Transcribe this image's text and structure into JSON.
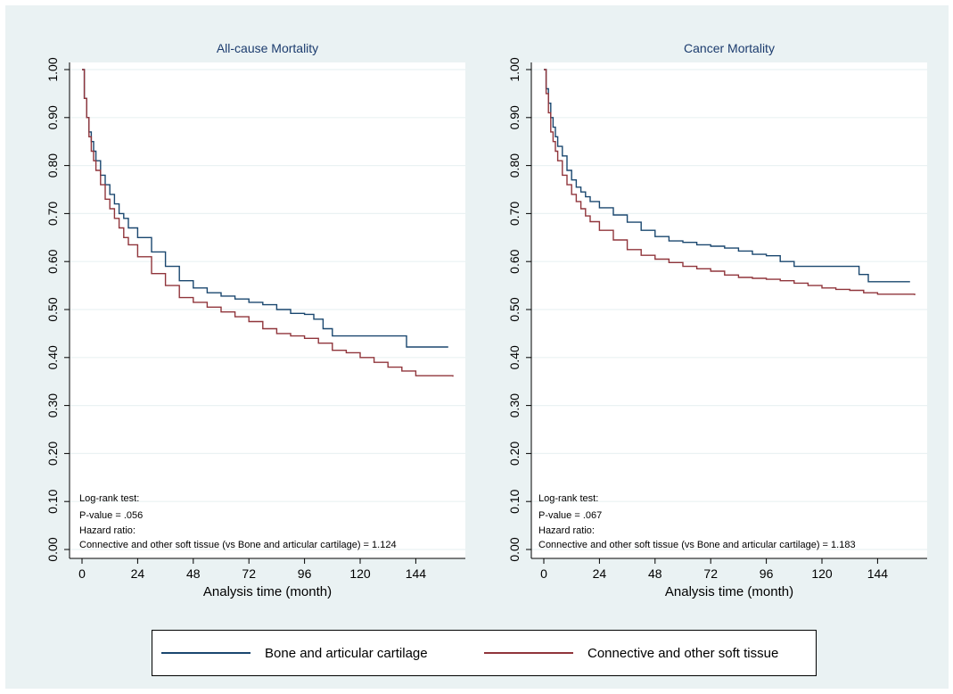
{
  "colors": {
    "series1": "#1a476f",
    "series2": "#90353b",
    "grid": "#eaf2f3"
  },
  "legend": {
    "items": [
      "Bone and articular cartilage",
      "Connective and other soft tissue"
    ]
  },
  "chart_data": [
    {
      "type": "line",
      "title": "All-cause Mortality",
      "xlabel": "Analysis time (month)",
      "ylabel": "",
      "xlim": [
        0,
        160
      ],
      "ylim": [
        0,
        1
      ],
      "xticks": [
        0,
        24,
        48,
        72,
        96,
        120,
        144
      ],
      "xtick_labels": [
        "0",
        "24",
        "48",
        "72",
        "96",
        "120",
        "144"
      ],
      "yticks": [
        0,
        0.1,
        0.2,
        0.3,
        0.4,
        0.5,
        0.6,
        0.7,
        0.8,
        0.9,
        1.0
      ],
      "ytick_labels": [
        "0.00",
        "0.10",
        "0.20",
        "0.30",
        "0.40",
        "0.50",
        "0.60",
        "0.70",
        "0.80",
        "0.90",
        "1.00"
      ],
      "grid": true,
      "annotations": [
        "Log-rank test:",
        "P-value = .056",
        "Hazard ratio:",
        "Connective and other soft tissue (vs Bone and articular cartilage) = 1.124"
      ],
      "series": [
        {
          "name": "Bone and articular cartilage",
          "x": [
            0,
            1,
            2,
            3,
            4,
            5,
            6,
            8,
            10,
            12,
            14,
            16,
            18,
            20,
            24,
            30,
            36,
            42,
            48,
            54,
            60,
            66,
            72,
            78,
            84,
            90,
            96,
            100,
            104,
            108,
            112,
            120,
            128,
            136,
            140,
            144,
            158
          ],
          "y": [
            1.0,
            0.94,
            0.9,
            0.87,
            0.85,
            0.83,
            0.81,
            0.78,
            0.76,
            0.74,
            0.72,
            0.7,
            0.69,
            0.67,
            0.65,
            0.62,
            0.59,
            0.56,
            0.545,
            0.535,
            0.528,
            0.522,
            0.515,
            0.51,
            0.5,
            0.492,
            0.49,
            0.48,
            0.46,
            0.445,
            0.445,
            0.445,
            0.445,
            0.445,
            0.422,
            0.422,
            0.422
          ]
        },
        {
          "name": "Connective and other soft tissue",
          "x": [
            0,
            1,
            2,
            3,
            4,
            5,
            6,
            8,
            10,
            12,
            14,
            16,
            18,
            20,
            24,
            30,
            36,
            42,
            48,
            54,
            60,
            66,
            72,
            78,
            84,
            90,
            96,
            102,
            108,
            114,
            120,
            126,
            132,
            138,
            144,
            160
          ],
          "y": [
            1.0,
            0.94,
            0.9,
            0.86,
            0.83,
            0.81,
            0.79,
            0.76,
            0.73,
            0.71,
            0.69,
            0.67,
            0.65,
            0.635,
            0.61,
            0.575,
            0.55,
            0.525,
            0.515,
            0.505,
            0.495,
            0.485,
            0.475,
            0.46,
            0.45,
            0.445,
            0.44,
            0.43,
            0.415,
            0.41,
            0.4,
            0.39,
            0.38,
            0.372,
            0.362,
            0.36
          ]
        }
      ]
    },
    {
      "type": "line",
      "title": "Cancer Mortality",
      "xlabel": "Analysis time (month)",
      "ylabel": "",
      "xlim": [
        0,
        160
      ],
      "ylim": [
        0,
        1
      ],
      "xticks": [
        0,
        24,
        48,
        72,
        96,
        120,
        144
      ],
      "xtick_labels": [
        "0",
        "24",
        "48",
        "72",
        "96",
        "120",
        "144"
      ],
      "yticks": [
        0,
        0.1,
        0.2,
        0.3,
        0.4,
        0.5,
        0.6,
        0.7,
        0.8,
        0.9,
        1.0
      ],
      "ytick_labels": [
        "0.00",
        "0.10",
        "0.20",
        "0.30",
        "0.40",
        "0.50",
        "0.60",
        "0.70",
        "0.80",
        "0.90",
        "1.00"
      ],
      "grid": true,
      "annotations": [
        "Log-rank test:",
        "P-value = .067",
        "Hazard ratio:",
        "Connective and other soft tissue (vs Bone and articular cartilage) = 1.183"
      ],
      "series": [
        {
          "name": "Bone and articular cartilage",
          "x": [
            0,
            1,
            2,
            3,
            4,
            5,
            6,
            8,
            10,
            12,
            14,
            16,
            18,
            20,
            24,
            30,
            36,
            42,
            48,
            54,
            60,
            66,
            72,
            78,
            84,
            90,
            96,
            102,
            108,
            114,
            120,
            126,
            132,
            136,
            140,
            144,
            158
          ],
          "y": [
            1.0,
            0.96,
            0.93,
            0.9,
            0.88,
            0.86,
            0.84,
            0.82,
            0.79,
            0.77,
            0.755,
            0.745,
            0.735,
            0.725,
            0.712,
            0.697,
            0.682,
            0.665,
            0.652,
            0.643,
            0.64,
            0.635,
            0.632,
            0.628,
            0.622,
            0.615,
            0.612,
            0.6,
            0.59,
            0.59,
            0.59,
            0.59,
            0.59,
            0.573,
            0.558,
            0.558,
            0.558
          ]
        },
        {
          "name": "Connective and other soft tissue",
          "x": [
            0,
            1,
            2,
            3,
            4,
            5,
            6,
            8,
            10,
            12,
            14,
            16,
            18,
            20,
            24,
            30,
            36,
            42,
            48,
            54,
            60,
            66,
            72,
            78,
            84,
            90,
            96,
            102,
            108,
            114,
            120,
            126,
            132,
            138,
            144,
            160
          ],
          "y": [
            1.0,
            0.95,
            0.91,
            0.87,
            0.85,
            0.83,
            0.81,
            0.78,
            0.76,
            0.74,
            0.725,
            0.71,
            0.695,
            0.683,
            0.665,
            0.645,
            0.625,
            0.613,
            0.605,
            0.598,
            0.59,
            0.585,
            0.58,
            0.572,
            0.567,
            0.565,
            0.563,
            0.56,
            0.555,
            0.55,
            0.545,
            0.542,
            0.54,
            0.535,
            0.532,
            0.53
          ]
        }
      ]
    }
  ]
}
